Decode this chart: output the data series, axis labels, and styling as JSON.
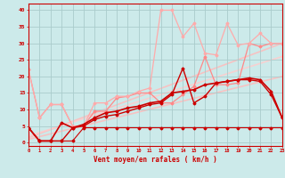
{
  "title": "",
  "xlabel": "Vent moyen/en rafales ( km/h )",
  "ylabel": "",
  "xlim": [
    0,
    23
  ],
  "ylim": [
    -1,
    42
  ],
  "yticks": [
    0,
    5,
    10,
    15,
    20,
    25,
    30,
    35,
    40
  ],
  "xticks": [
    0,
    1,
    2,
    3,
    4,
    5,
    6,
    7,
    8,
    9,
    10,
    11,
    12,
    13,
    14,
    15,
    16,
    17,
    18,
    19,
    20,
    21,
    22,
    23
  ],
  "bg_color": "#cceaea",
  "grid_color": "#aacccc",
  "series": [
    {
      "x": [
        0,
        1,
        2,
        3,
        4,
        5,
        6,
        7,
        8,
        9,
        10,
        11,
        12,
        13,
        14,
        15,
        16,
        17,
        18,
        19,
        20,
        21,
        22,
        23
      ],
      "y": [
        4.5,
        0.5,
        0.5,
        0.5,
        0.5,
        4.5,
        4.5,
        4.5,
        4.5,
        4.5,
        4.5,
        4.5,
        4.5,
        4.5,
        4.5,
        4.5,
        4.5,
        4.5,
        4.5,
        4.5,
        4.5,
        4.5,
        4.5,
        4.5
      ],
      "color": "#cc0000",
      "lw": 0.8,
      "marker": "D",
      "ms": 1.5,
      "alpha": 1.0,
      "zorder": 3
    },
    {
      "x": [
        0,
        1,
        2,
        3,
        4,
        5,
        6,
        7,
        8,
        9,
        10,
        11,
        12,
        13,
        14,
        15,
        16,
        17,
        18,
        19,
        20,
        21,
        22,
        23
      ],
      "y": [
        4.5,
        0.5,
        0.5,
        0.5,
        4.5,
        5.0,
        7.0,
        8.0,
        8.5,
        9.5,
        10.5,
        11.5,
        12.0,
        14.5,
        22.5,
        12.0,
        14.0,
        18.0,
        18.5,
        19.0,
        19.0,
        18.5,
        14.5,
        7.5
      ],
      "color": "#cc0000",
      "lw": 1.0,
      "marker": "D",
      "ms": 1.5,
      "alpha": 1.0,
      "zorder": 3
    },
    {
      "x": [
        0,
        1,
        2,
        3,
        4,
        5,
        6,
        7,
        8,
        9,
        10,
        11,
        12,
        13,
        14,
        15,
        16,
        17,
        18,
        19,
        20,
        21,
        22,
        23
      ],
      "y": [
        4.5,
        0.5,
        0.5,
        6.0,
        4.5,
        5.5,
        7.5,
        9.0,
        9.5,
        10.5,
        11.0,
        12.0,
        12.5,
        15.0,
        15.5,
        16.0,
        17.5,
        18.0,
        18.5,
        19.0,
        19.5,
        19.0,
        15.5,
        7.5
      ],
      "color": "#cc0000",
      "lw": 1.2,
      "marker": "D",
      "ms": 1.5,
      "alpha": 1.0,
      "zorder": 3
    },
    {
      "x": [
        0,
        1,
        2,
        3,
        4,
        5,
        6,
        7,
        8,
        9,
        10,
        11,
        12,
        13,
        14,
        15,
        16,
        17,
        18,
        19,
        20,
        21,
        22,
        23
      ],
      "y": [
        22.0,
        7.5,
        11.5,
        11.5,
        5.0,
        5.0,
        9.5,
        9.5,
        13.5,
        14.0,
        15.0,
        15.0,
        12.0,
        12.0,
        14.5,
        17.0,
        26.0,
        17.5,
        17.5,
        18.0,
        30.0,
        29.0,
        30.0,
        30.0
      ],
      "color": "#ff8888",
      "lw": 0.9,
      "marker": "D",
      "ms": 1.5,
      "alpha": 1.0,
      "zorder": 2
    },
    {
      "x": [
        0,
        1,
        2,
        3,
        4,
        5,
        6,
        7,
        8,
        9,
        10,
        11,
        12,
        13,
        14,
        15,
        16,
        17,
        18,
        19,
        20,
        21,
        22,
        23
      ],
      "y": [
        22.0,
        7.5,
        11.5,
        11.5,
        5.0,
        5.0,
        12.0,
        12.0,
        14.0,
        14.0,
        15.5,
        16.5,
        40.0,
        40.0,
        32.0,
        36.0,
        27.0,
        26.5,
        36.0,
        29.5,
        30.0,
        33.0,
        30.0,
        30.0
      ],
      "color": "#ffaaaa",
      "lw": 0.9,
      "marker": "D",
      "ms": 1.5,
      "alpha": 1.0,
      "zorder": 2
    },
    {
      "x": [
        0,
        23
      ],
      "y": [
        1.5,
        30.0
      ],
      "color": "#ffbbbb",
      "lw": 1.2,
      "marker": null,
      "ms": 0,
      "alpha": 0.85,
      "zorder": 1
    },
    {
      "x": [
        0,
        23
      ],
      "y": [
        1.0,
        20.0
      ],
      "color": "#ffbbbb",
      "lw": 1.2,
      "marker": null,
      "ms": 0,
      "alpha": 0.85,
      "zorder": 1
    },
    {
      "x": [
        0,
        23
      ],
      "y": [
        2.0,
        26.0
      ],
      "color": "#ffcccc",
      "lw": 1.2,
      "marker": null,
      "ms": 0,
      "alpha": 0.85,
      "zorder": 1
    }
  ]
}
